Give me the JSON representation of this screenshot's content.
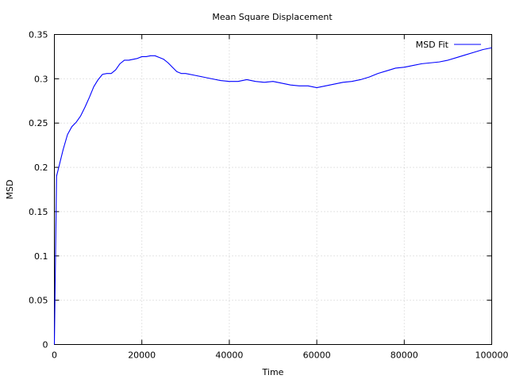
{
  "chart_data": {
    "type": "line",
    "title": "Mean Square Displacement",
    "xlabel": "Time",
    "ylabel": "MSD",
    "xlim": [
      0,
      100000
    ],
    "ylim": [
      0,
      0.35
    ],
    "xticks": [
      0,
      20000,
      40000,
      60000,
      80000,
      100000
    ],
    "xtick_labels": [
      "0",
      "20000",
      "40000",
      "60000",
      "80000",
      "100000"
    ],
    "yticks": [
      0,
      0.05,
      0.1,
      0.15,
      0.2,
      0.25,
      0.3,
      0.35
    ],
    "ytick_labels": [
      "0",
      "0.05",
      "0.1",
      "0.15",
      "0.2",
      "0.25",
      "0.3",
      "0.35"
    ],
    "grid": true,
    "legend_position": "top-right",
    "series_color": "#0000ff",
    "series": [
      {
        "name": "MSD Fit",
        "x": [
          0,
          500,
          1000,
          2000,
          3000,
          4000,
          5000,
          6000,
          7000,
          8000,
          9000,
          10000,
          11000,
          12000,
          13000,
          14000,
          15000,
          16000,
          17000,
          18000,
          19000,
          20000,
          21000,
          22000,
          23000,
          24000,
          25000,
          26000,
          27000,
          28000,
          29000,
          30000,
          32000,
          34000,
          36000,
          38000,
          40000,
          42000,
          44000,
          46000,
          48000,
          50000,
          52000,
          54000,
          56000,
          58000,
          60000,
          62000,
          64000,
          66000,
          68000,
          70000,
          72000,
          74000,
          76000,
          78000,
          80000,
          82000,
          84000,
          86000,
          88000,
          90000,
          92000,
          94000,
          96000,
          98000,
          100000
        ],
        "y": [
          0.0,
          0.19,
          0.2,
          0.22,
          0.237,
          0.246,
          0.251,
          0.258,
          0.268,
          0.279,
          0.291,
          0.299,
          0.305,
          0.306,
          0.306,
          0.31,
          0.317,
          0.321,
          0.321,
          0.322,
          0.323,
          0.325,
          0.325,
          0.326,
          0.326,
          0.324,
          0.322,
          0.318,
          0.313,
          0.308,
          0.306,
          0.306,
          0.304,
          0.302,
          0.3,
          0.298,
          0.297,
          0.297,
          0.299,
          0.297,
          0.296,
          0.297,
          0.295,
          0.293,
          0.292,
          0.292,
          0.29,
          0.292,
          0.294,
          0.296,
          0.297,
          0.299,
          0.302,
          0.306,
          0.309,
          0.312,
          0.313,
          0.315,
          0.317,
          0.318,
          0.319,
          0.321,
          0.324,
          0.327,
          0.33,
          0.333,
          0.335
        ]
      }
    ]
  }
}
